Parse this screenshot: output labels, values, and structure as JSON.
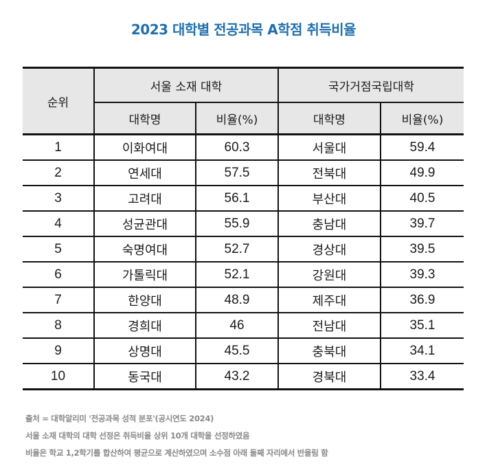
{
  "title": "2023 대학별 전공과목 A학점 취득비율",
  "table": {
    "rank_header": "순위",
    "groups": [
      {
        "label": "서울 소재 대학",
        "name_header": "대학명",
        "rate_header": "비율(%)"
      },
      {
        "label": "국가거점국립대학",
        "name_header": "대학명",
        "rate_header": "비율(%)"
      }
    ],
    "rows": [
      {
        "rank": "1",
        "seoul_name": "이화여대",
        "seoul_rate": "60.3",
        "national_name": "서울대",
        "national_rate": "59.4"
      },
      {
        "rank": "2",
        "seoul_name": "연세대",
        "seoul_rate": "57.5",
        "national_name": "전북대",
        "national_rate": "49.9"
      },
      {
        "rank": "3",
        "seoul_name": "고려대",
        "seoul_rate": "56.1",
        "national_name": "부산대",
        "national_rate": "40.5"
      },
      {
        "rank": "4",
        "seoul_name": "성균관대",
        "seoul_rate": "55.9",
        "national_name": "충남대",
        "national_rate": "39.7"
      },
      {
        "rank": "5",
        "seoul_name": "숙명여대",
        "seoul_rate": "52.7",
        "national_name": "경상대",
        "national_rate": "39.5"
      },
      {
        "rank": "6",
        "seoul_name": "가톨릭대",
        "seoul_rate": "52.1",
        "national_name": "강원대",
        "national_rate": "39.3"
      },
      {
        "rank": "7",
        "seoul_name": "한양대",
        "seoul_rate": "48.9",
        "national_name": "제주대",
        "national_rate": "36.9"
      },
      {
        "rank": "8",
        "seoul_name": "경희대",
        "seoul_rate": "46",
        "national_name": "전남대",
        "national_rate": "35.1"
      },
      {
        "rank": "9",
        "seoul_name": "상명대",
        "seoul_rate": "45.5",
        "national_name": "충북대",
        "national_rate": "34.1"
      },
      {
        "rank": "10",
        "seoul_name": "동국대",
        "seoul_rate": "43.2",
        "national_name": "경북대",
        "national_rate": "33.4"
      }
    ]
  },
  "notes": [
    "출처 = 대학알리미 '전공과목 성적 분포'(공시연도 2024)",
    "서울 소재 대학의 대학 선정은 취득비율 상위 10개 대학을 선정하였음",
    "비율은 학교 1,2학기를 합산하여 평균으로 계산하였으며 소수점 아래 둘째 자리에서 반올림 함"
  ],
  "colors": {
    "title": "#1f6fae",
    "header_bg": "#e8e7e8",
    "border": "#111111",
    "notes": "#888888"
  }
}
